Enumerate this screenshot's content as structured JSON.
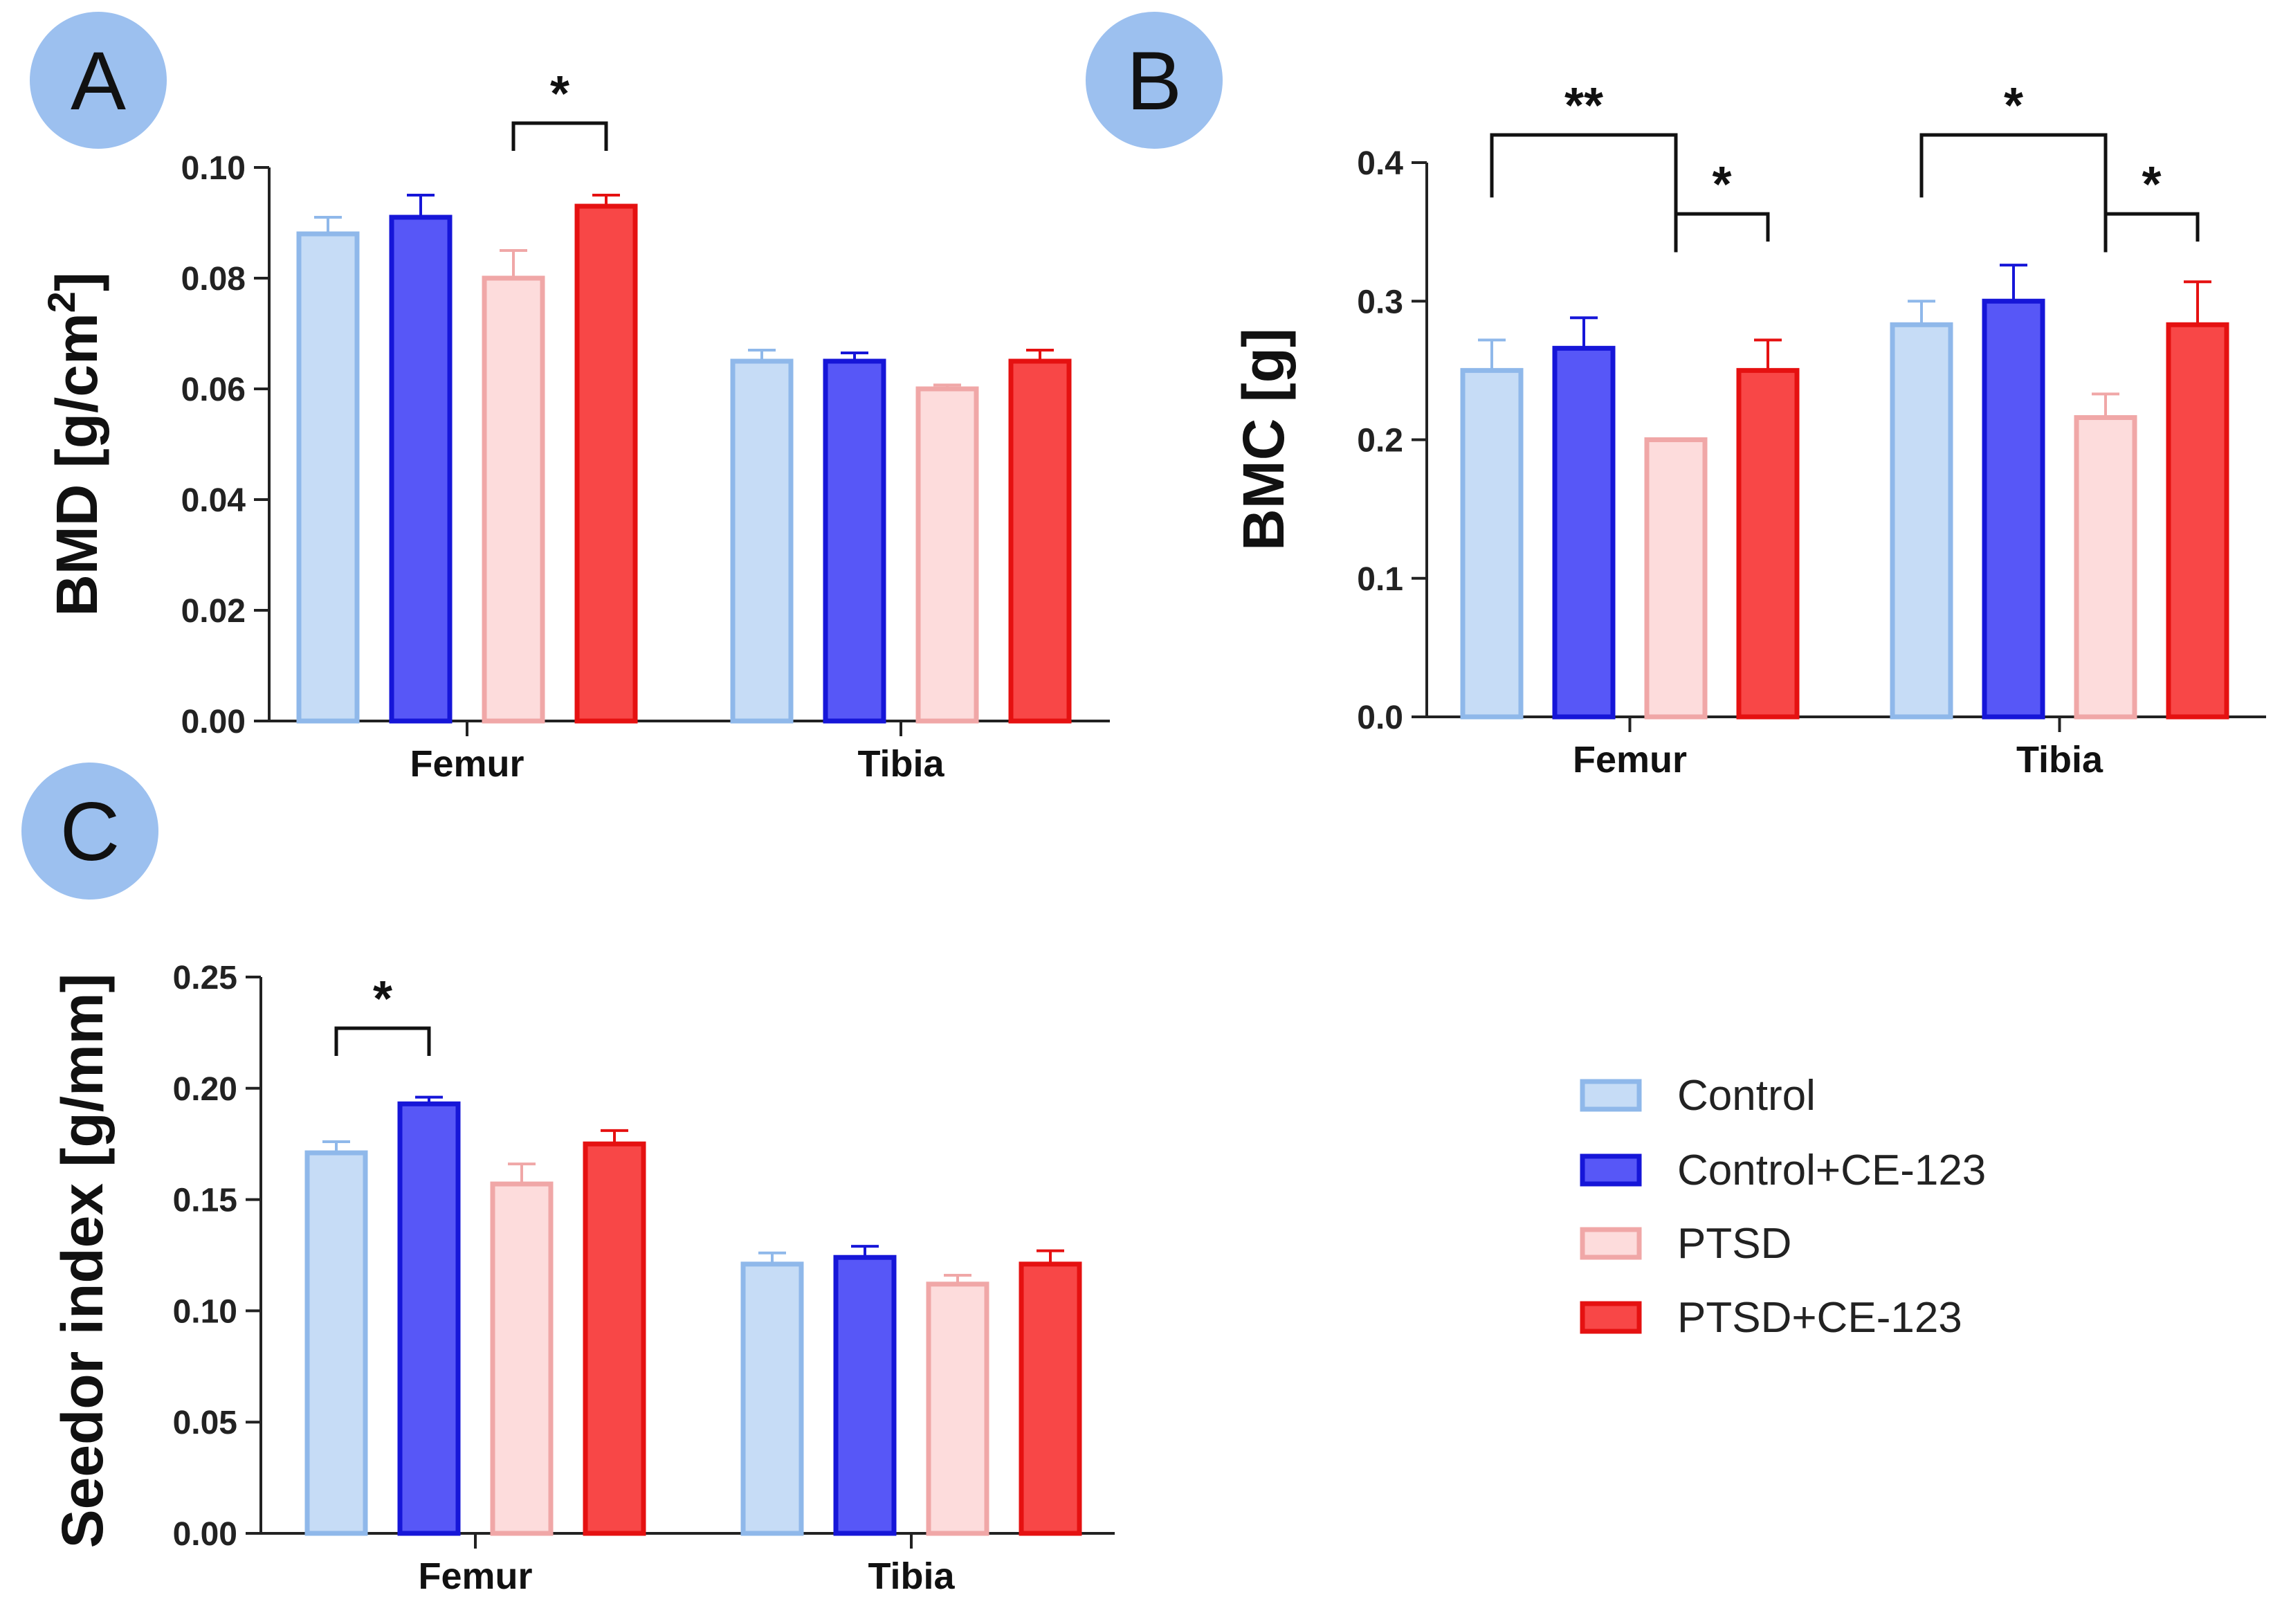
{
  "colors": {
    "Control": {
      "fill": "#c6dcf6",
      "stroke": "#8fb8ea"
    },
    "Control+CE-123": {
      "fill": "#5757f7",
      "stroke": "#1616d8"
    },
    "PTSD": {
      "fill": "#fddcdc",
      "stroke": "#f0a7a7"
    },
    "PTSD+CE-123": {
      "fill": "#f84747",
      "stroke": "#e51111"
    },
    "panel_circle": "#9cc0ef",
    "axis": "#222222"
  },
  "legend": {
    "items": [
      "Control",
      "Control+CE-123",
      "PTSD",
      "PTSD+CE-123"
    ]
  },
  "chart_data": [
    {
      "panel": "A",
      "type": "bar",
      "ylabel": "BMD [g/cm2]",
      "ylabel_parts": {
        "main": "BMD [g/cm",
        "sup": "2",
        "end": "]"
      },
      "categories": [
        "Femur",
        "Tibia"
      ],
      "ylim": [
        0,
        0.1
      ],
      "yticks": [
        "0.00",
        "0.02",
        "0.04",
        "0.06",
        "0.08",
        "0.10"
      ],
      "series": [
        {
          "name": "Control",
          "values": [
            0.088,
            0.065
          ],
          "errors": [
            0.003,
            0.002
          ]
        },
        {
          "name": "Control+CE-123",
          "values": [
            0.091,
            0.065
          ],
          "errors": [
            0.004,
            0.0015
          ]
        },
        {
          "name": "PTSD",
          "values": [
            0.08,
            0.06
          ],
          "errors": [
            0.005,
            0.0007
          ]
        },
        {
          "name": "PTSD+CE-123",
          "values": [
            0.093,
            0.065
          ],
          "errors": [
            0.002,
            0.002
          ]
        }
      ],
      "significance": [
        {
          "category": 0,
          "from": 2,
          "to": 3,
          "label": "*",
          "y": 0.108,
          "level": 0
        }
      ]
    },
    {
      "panel": "B",
      "type": "bar",
      "ylabel": "BMC [g]",
      "ylabel_parts": {
        "main": "BMC [g]",
        "sup": "",
        "end": ""
      },
      "categories": [
        "Femur",
        "Tibia"
      ],
      "ylim": [
        0,
        0.4
      ],
      "yticks": [
        "0.0",
        "0.1",
        "0.2",
        "0.3",
        "0.4"
      ],
      "series": [
        {
          "name": "Control",
          "values": [
            0.25,
            0.283
          ],
          "errors": [
            0.022,
            0.017
          ]
        },
        {
          "name": "Control+CE-123",
          "values": [
            0.266,
            0.3
          ],
          "errors": [
            0.022,
            0.026
          ]
        },
        {
          "name": "PTSD",
          "values": [
            0.2,
            0.216
          ],
          "errors": [
            0.0,
            0.017
          ]
        },
        {
          "name": "PTSD+CE-123",
          "values": [
            0.25,
            0.283
          ],
          "errors": [
            0.022,
            0.031
          ]
        }
      ],
      "significance": [
        {
          "category": 0,
          "from": 0,
          "to": 2,
          "label": "**",
          "y": 0.42,
          "level": 1
        },
        {
          "category": 0,
          "from": 2,
          "to": 3,
          "label": "*",
          "y": 0.363,
          "level": 0
        },
        {
          "category": 1,
          "from": 0,
          "to": 2,
          "label": "*",
          "y": 0.42,
          "level": 1
        },
        {
          "category": 1,
          "from": 2,
          "to": 3,
          "label": "*",
          "y": 0.363,
          "level": 0
        }
      ]
    },
    {
      "panel": "C",
      "type": "bar",
      "ylabel": "Seedor index [g/mm]",
      "ylabel_parts": {
        "main": "Seedor index [g/mm]",
        "sup": "",
        "end": ""
      },
      "categories": [
        "Femur",
        "Tibia"
      ],
      "ylim": [
        0,
        0.25
      ],
      "yticks": [
        "0.00",
        "0.05",
        "0.10",
        "0.15",
        "0.20",
        "0.25"
      ],
      "series": [
        {
          "name": "Control",
          "values": [
            0.171,
            0.121
          ],
          "errors": [
            0.005,
            0.005
          ]
        },
        {
          "name": "Control+CE-123",
          "values": [
            0.193,
            0.124
          ],
          "errors": [
            0.003,
            0.005
          ]
        },
        {
          "name": "PTSD",
          "values": [
            0.157,
            0.112
          ],
          "errors": [
            0.009,
            0.004
          ]
        },
        {
          "name": "PTSD+CE-123",
          "values": [
            0.175,
            0.121
          ],
          "errors": [
            0.006,
            0.006
          ]
        }
      ],
      "significance": [
        {
          "category": 0,
          "from": 0,
          "to": 1,
          "label": "*",
          "y": 0.227,
          "level": 0
        }
      ]
    }
  ]
}
